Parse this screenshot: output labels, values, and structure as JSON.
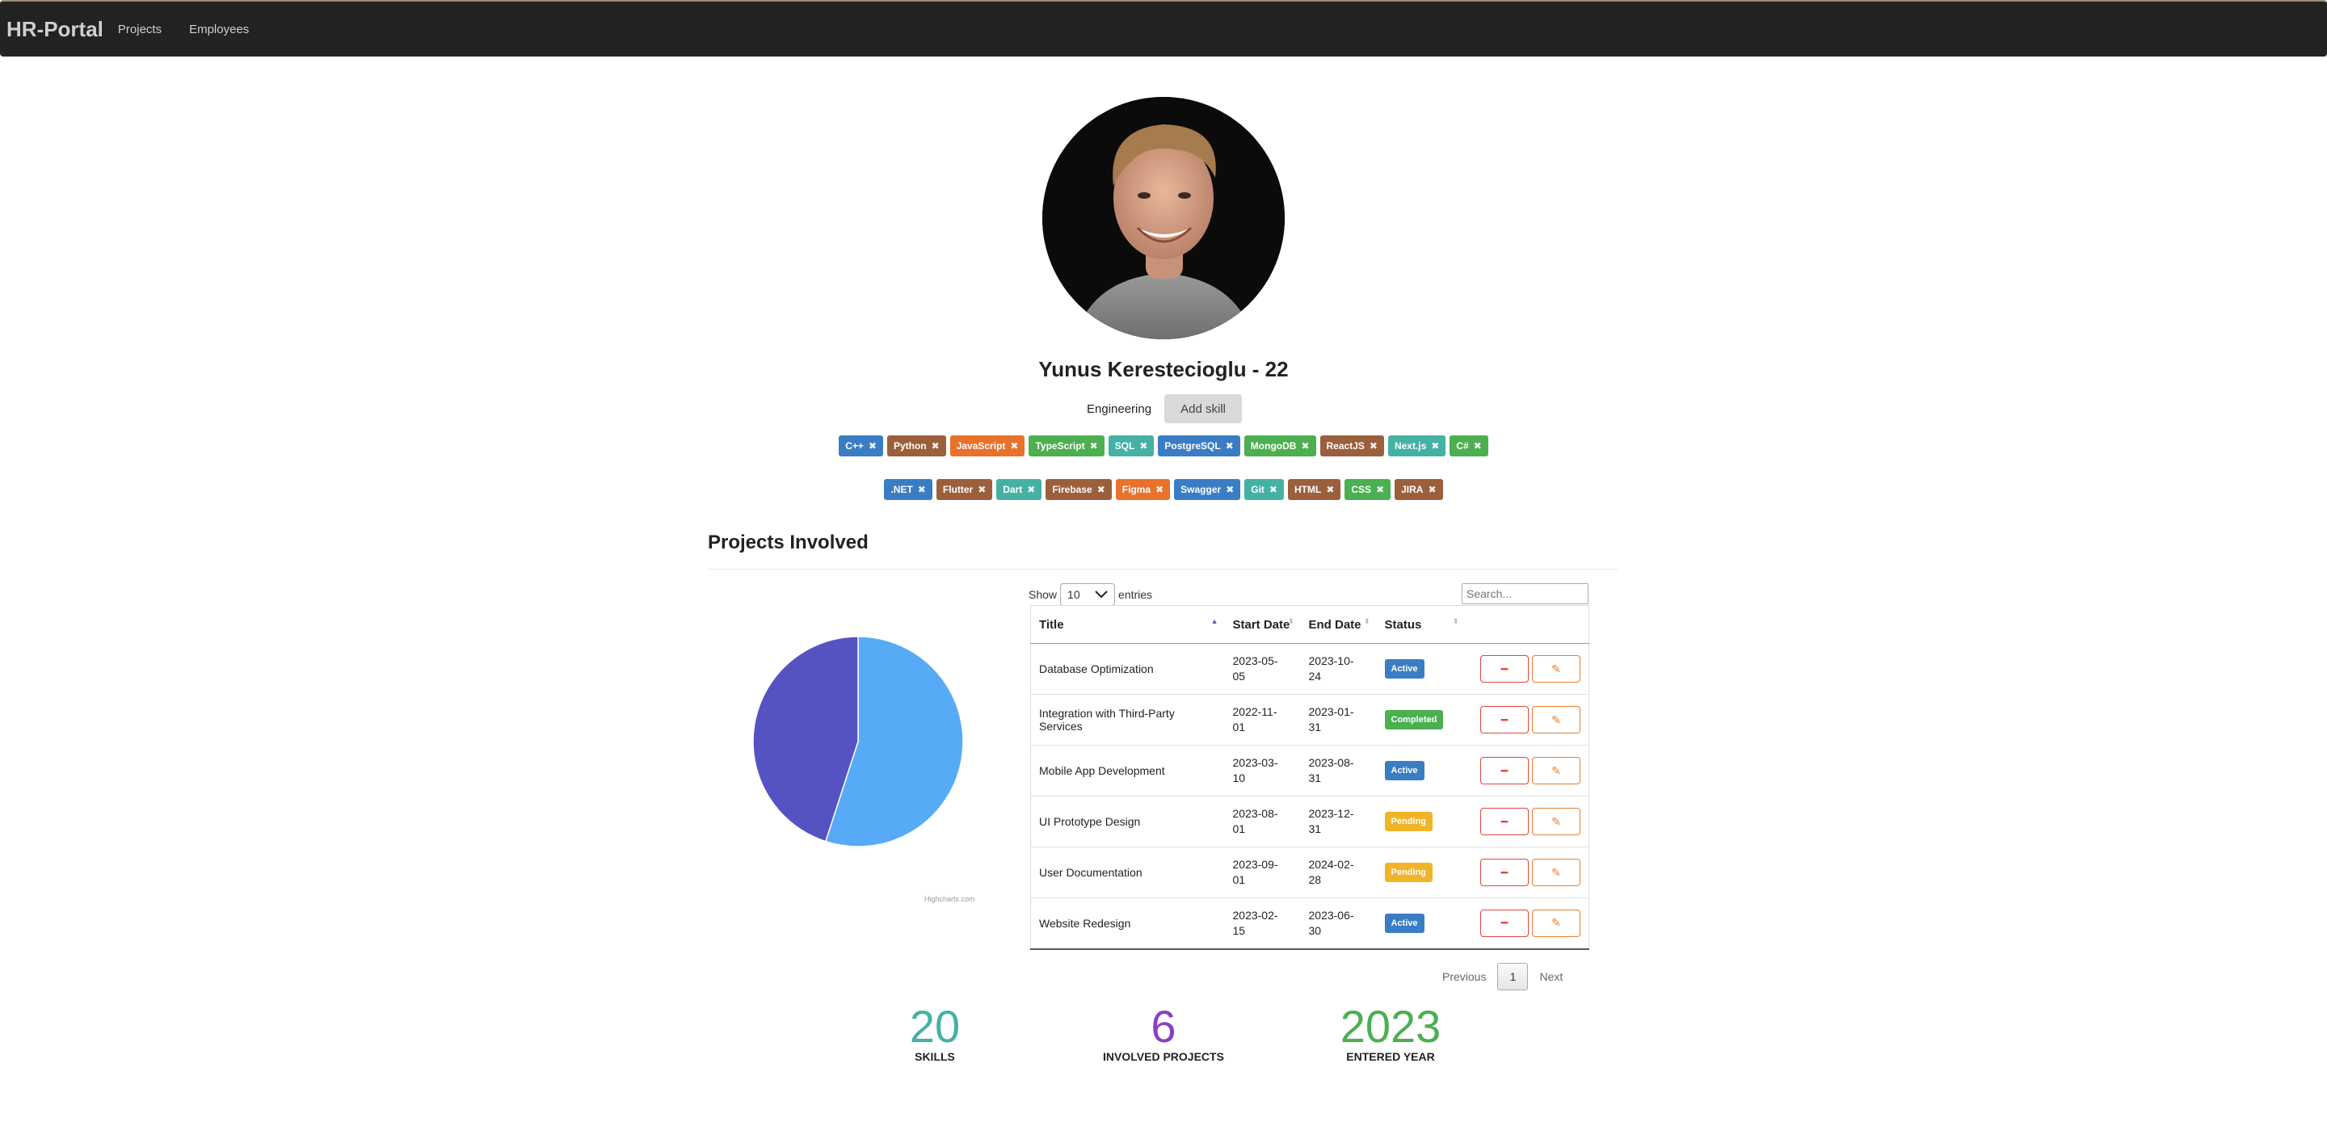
{
  "navbar": {
    "brand": "HR-Portal",
    "links": [
      "Projects",
      "Employees"
    ]
  },
  "profile": {
    "name": "Yunus Kerestecioglu - 22",
    "department": "Engineering",
    "add_skill_label": "Add skill"
  },
  "skills": [
    {
      "label": "C++",
      "color": "#3b7dc4"
    },
    {
      "label": "Python",
      "color": "#9b5f3c"
    },
    {
      "label": "JavaScript",
      "color": "#e8712b"
    },
    {
      "label": "TypeScript",
      "color": "#4caf50"
    },
    {
      "label": "SQL",
      "color": "#45b1a4"
    },
    {
      "label": "PostgreSQL",
      "color": "#3b7dc4"
    },
    {
      "label": "MongoDB",
      "color": "#4caf50"
    },
    {
      "label": "ReactJS",
      "color": "#9b5f3c"
    },
    {
      "label": "Next.js",
      "color": "#45b1a4"
    },
    {
      "label": "C#",
      "color": "#4caf50"
    },
    {
      "label": ".NET",
      "color": "#3b7dc4"
    },
    {
      "label": "Flutter",
      "color": "#9b5f3c"
    },
    {
      "label": "Dart",
      "color": "#45b1a4"
    },
    {
      "label": "Firebase",
      "color": "#9b5f3c"
    },
    {
      "label": "Figma",
      "color": "#e8712b"
    },
    {
      "label": "Swagger",
      "color": "#3b7dc4"
    },
    {
      "label": "Git",
      "color": "#45b1a4"
    },
    {
      "label": "HTML",
      "color": "#9b5f3c"
    },
    {
      "label": "CSS",
      "color": "#4caf50"
    },
    {
      "label": "JIRA",
      "color": "#9b5f3c"
    }
  ],
  "projects_section": {
    "title": "Projects Involved",
    "show_label": "Show",
    "entries_label": "entries",
    "page_length": "10",
    "search_placeholder": "Search...",
    "columns": [
      "Title",
      "Start Date",
      "End Date",
      "Status"
    ],
    "rows": [
      {
        "title": "Database Optimization",
        "start": "2023-05-05",
        "end": "2023-10-24",
        "status": "Active"
      },
      {
        "title": "Integration with Third-Party Services",
        "start": "2022-11-01",
        "end": "2023-01-31",
        "status": "Completed"
      },
      {
        "title": "Mobile App Development",
        "start": "2023-03-10",
        "end": "2023-08-31",
        "status": "Active"
      },
      {
        "title": "UI Prototype Design",
        "start": "2023-08-01",
        "end": "2023-12-31",
        "status": "Pending"
      },
      {
        "title": "User Documentation",
        "start": "2023-09-01",
        "end": "2024-02-28",
        "status": "Pending"
      },
      {
        "title": "Website Redesign",
        "start": "2023-02-15",
        "end": "2023-06-30",
        "status": "Active"
      }
    ],
    "status_colors": {
      "Active": "#3b7dc4",
      "Completed": "#4caf50",
      "Pending": "#f0b429"
    },
    "pager": {
      "previous": "Previous",
      "page": "1",
      "next": "Next"
    },
    "chart_credit": "Highcharts.com"
  },
  "chart_data": {
    "type": "pie",
    "title": "",
    "series": [
      {
        "values": [
          55,
          45
        ],
        "colors": [
          "#57aaf5",
          "#5552c2"
        ]
      }
    ]
  },
  "stats": [
    {
      "value": "20",
      "label": "SKILLS",
      "color": "#45b1a4"
    },
    {
      "value": "6",
      "label": "INVOLVED PROJECTS",
      "color": "#8a3fc4"
    },
    {
      "value": "2023",
      "label": "ENTERED YEAR",
      "color": "#4caf50"
    }
  ]
}
